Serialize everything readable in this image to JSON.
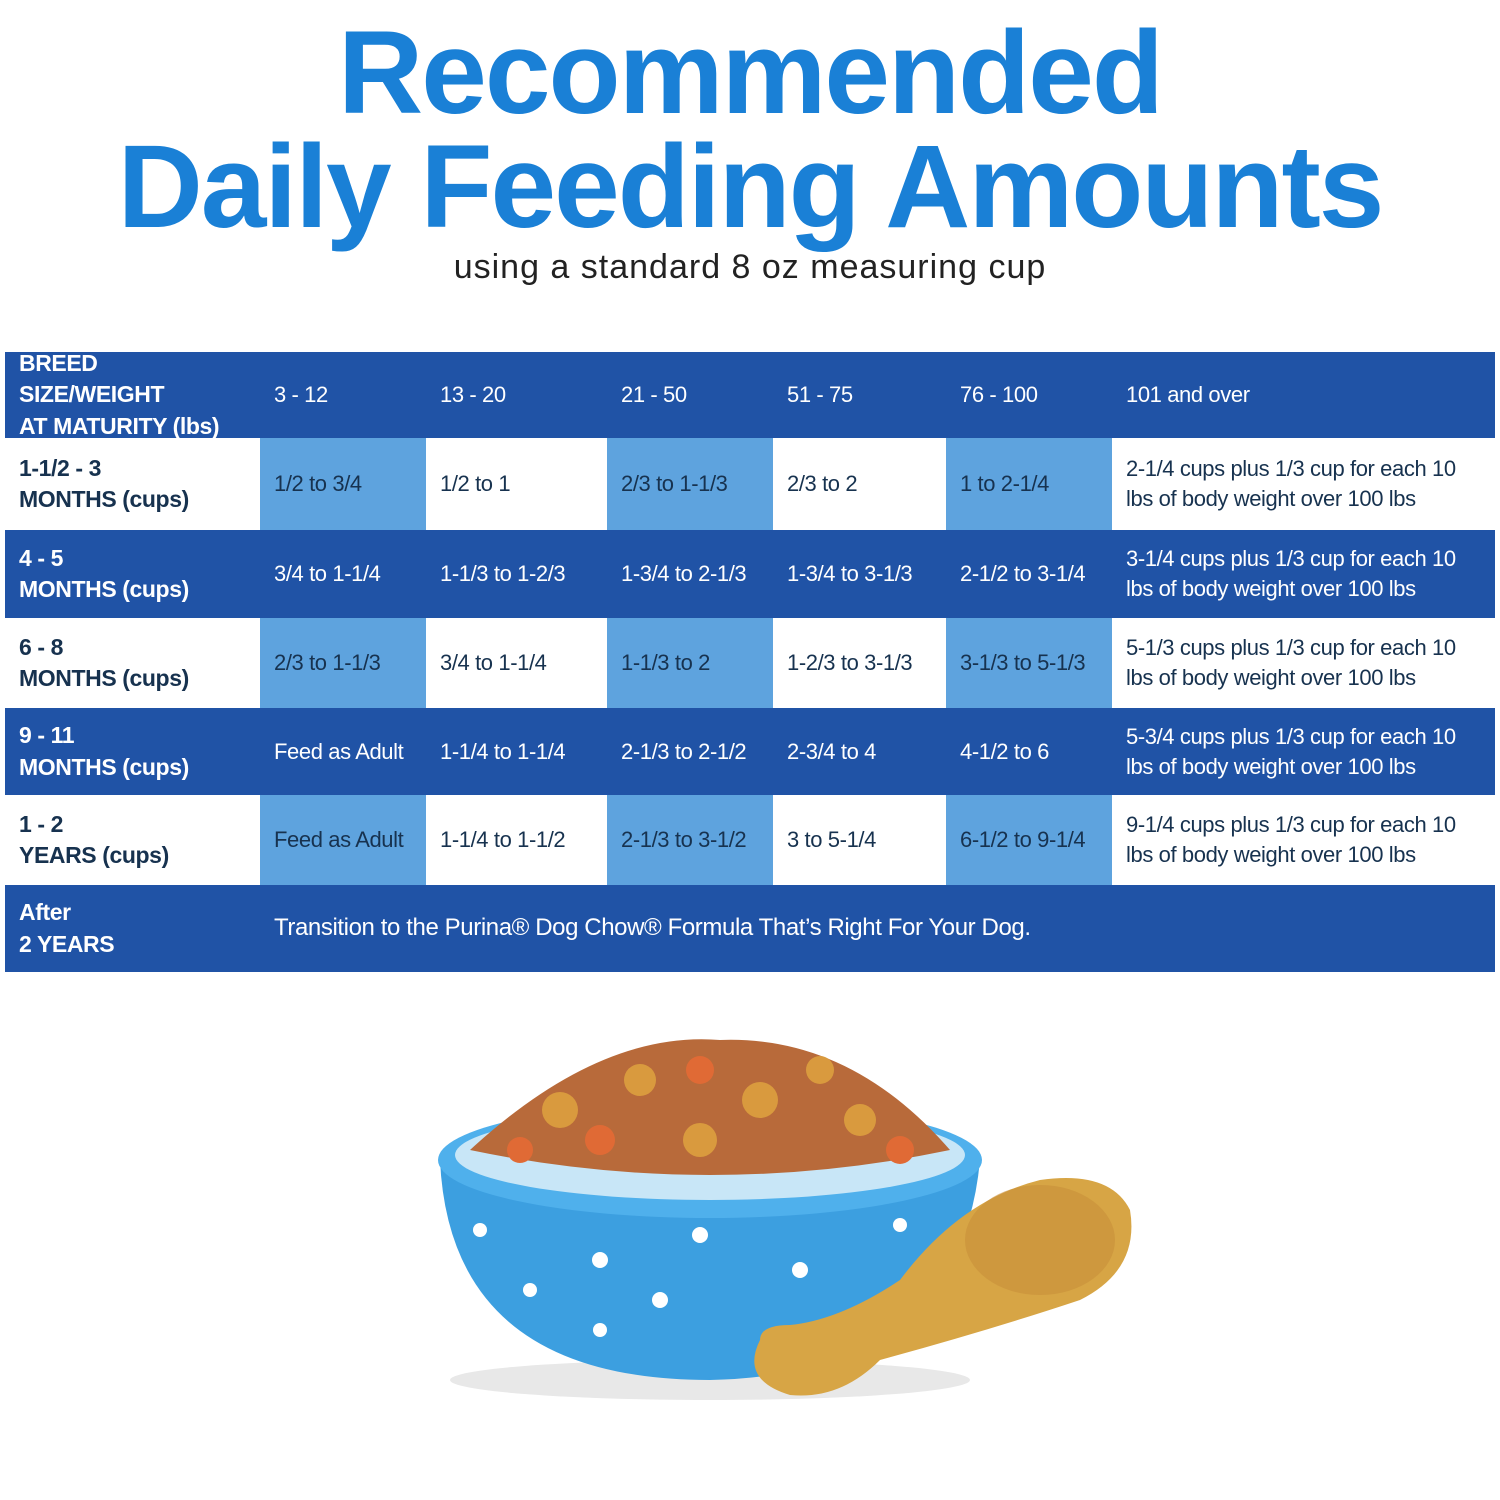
{
  "header": {
    "title": [
      "Recommended",
      "Daily Feeding Amounts"
    ],
    "subtitle": "using a standard 8 oz measuring cup"
  },
  "table": {
    "columns": [
      [
        "BREED SIZE/WEIGHT",
        "AT MATURITY (lbs)"
      ],
      "3 - 12",
      "13 - 20",
      "21 - 50",
      "51 - 75",
      "76 - 100",
      "101 and over"
    ],
    "rows": [
      {
        "label": [
          "1-1/2 - 3",
          "MONTHS (cups)"
        ],
        "cells": [
          "1/2 to 3/4",
          "1/2 to 1",
          "2/3 to 1-1/3",
          "2/3 to 2",
          "1 to 2-1/4",
          "2-1/4 cups plus 1/3 cup for each 10 lbs of body weight over 100 lbs"
        ]
      },
      {
        "label": [
          "4 - 5",
          "MONTHS (cups)"
        ],
        "cells": [
          "3/4 to 1-1/4",
          "1-1/3 to 1-2/3",
          "1-3/4 to 2-1/3",
          "1-3/4 to 3-1/3",
          "2-1/2 to 3-1/4",
          "3-1/4 cups plus 1/3 cup for each 10 lbs of body weight over 100 lbs"
        ]
      },
      {
        "label": [
          "6 - 8",
          "MONTHS (cups)"
        ],
        "cells": [
          "2/3 to 1-1/3",
          "3/4 to 1-1/4",
          "1-1/3 to 2",
          "1-2/3 to 3-1/3",
          "3-1/3 to 5-1/3",
          "5-1/3 cups plus 1/3 cup for each 10 lbs of body weight over 100 lbs"
        ]
      },
      {
        "label": [
          "9 - 11",
          "MONTHS (cups)"
        ],
        "cells": [
          "Feed as Adult",
          "1-1/4 to 1-1/4",
          "2-1/3 to 2-1/2",
          "2-3/4 to 4",
          "4-1/2 to 6",
          "5-3/4 cups plus 1/3 cup for each 10 lbs of body weight over 100 lbs"
        ]
      },
      {
        "label": [
          "1 - 2",
          "YEARS (cups)"
        ],
        "cells": [
          "Feed as Adult",
          "1-1/4 to 1-1/2",
          "2-1/3 to 3-1/2",
          "3 to 5-1/4",
          "6-1/2 to 9-1/4",
          "9-1/4 cups plus 1/3 cup for each 10 lbs of body weight over 100 lbs"
        ]
      },
      {
        "label": [
          "After",
          "2 YEARS"
        ],
        "cells": [
          "Transition to the Purina® Dog Chow® Formula That’s Right For Your Dog."
        ]
      }
    ]
  }
}
